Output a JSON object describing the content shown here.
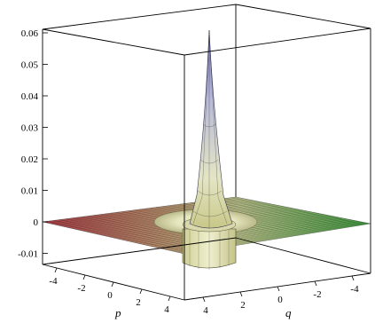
{
  "chart_data": {
    "type": "surface3d",
    "title": "",
    "xlabel": "p",
    "ylabel": "q",
    "zlabel": "",
    "xlim": [
      -5,
      5
    ],
    "ylim": [
      -5,
      5
    ],
    "zlim": [
      -0.015,
      0.062
    ],
    "x_ticks": [
      "-4",
      "-2",
      "0",
      "2",
      "4"
    ],
    "y_ticks": [
      "4",
      "2",
      "0",
      "-2",
      "-4"
    ],
    "z_ticks": [
      "0.06",
      "0.05",
      "0.04",
      "0.03",
      "0.02",
      "0.01",
      "0",
      "-0.01"
    ],
    "z_tick_values": [
      0.06,
      0.05,
      0.04,
      0.03,
      0.02,
      0.01,
      0,
      -0.01
    ],
    "surface": {
      "peak": {
        "p": 0,
        "q": 0,
        "value": 0.062
      },
      "trough_ring_value": -0.011,
      "trough_ring_radius": 1.3,
      "baseline": 0
    },
    "grid": false,
    "box": true,
    "colors": {
      "peak": "#8e8ec8",
      "mid": "#d7d8a8",
      "plane_left": "#b04040",
      "plane_right": "#40a040",
      "mesh": "#000000"
    }
  }
}
